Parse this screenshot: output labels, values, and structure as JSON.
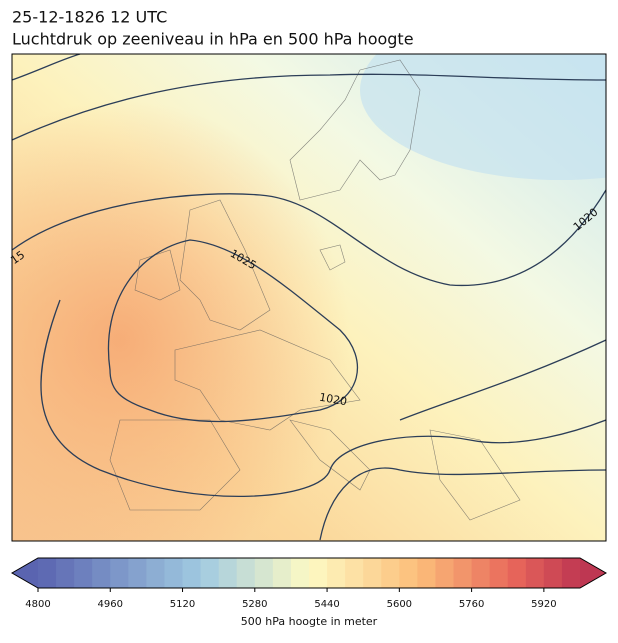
{
  "header": {
    "line1": "25-12-1826 12 UTC",
    "line2": "Luchtdruk op zeeniveau in hPa en 500 hPa hoogte"
  },
  "map": {
    "contour_labels": [
      "15",
      "1025",
      "1020",
      "1020"
    ]
  },
  "colorbar": {
    "range": [
      4800,
      6000
    ],
    "step": 40,
    "ticks": [
      4800,
      4960,
      5120,
      5280,
      5440,
      5600,
      5760,
      5920
    ],
    "label": "500 hPa hoogte in meter"
  }
}
